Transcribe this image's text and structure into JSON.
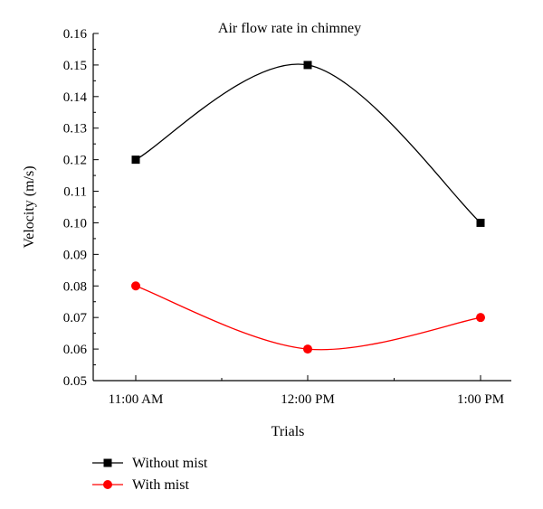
{
  "chart_data": {
    "type": "line",
    "title": "Air flow rate in chimney",
    "xlabel": "Trials",
    "ylabel": "Velocity (m/s)",
    "categories": [
      "11:00 AM",
      "12:00 PM",
      "1:00 PM"
    ],
    "ylim": [
      0.05,
      0.16
    ],
    "yticks": [
      "0.05",
      "0.06",
      "0.07",
      "0.08",
      "0.09",
      "0.10",
      "0.11",
      "0.12",
      "0.13",
      "0.14",
      "0.15",
      "0.16"
    ],
    "grid": false,
    "legend_position": "bottom-left",
    "series": [
      {
        "name": "Without mist",
        "values": [
          0.12,
          0.15,
          0.1
        ],
        "color": "#000000",
        "marker": "square",
        "smooth": true
      },
      {
        "name": "With mist",
        "values": [
          0.08,
          0.06,
          0.07
        ],
        "color": "#ff0000",
        "marker": "circle",
        "smooth": true
      }
    ]
  }
}
